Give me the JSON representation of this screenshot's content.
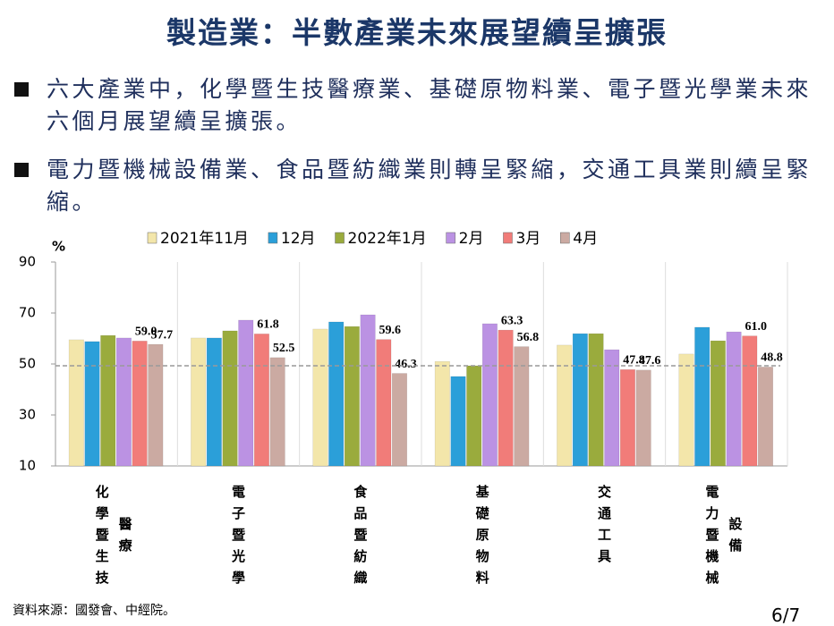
{
  "header": {
    "title": "製造業：半數產業未來展望續呈擴張"
  },
  "bullets": [
    "六大產業中，化學暨生技醫療業、基礎原物料業、電子暨光學業未來六個月展望續呈擴張。",
    "電力暨機械設備業、食品暨紡織業則轉呈緊縮，交通工具業則續呈緊縮。"
  ],
  "chart_data": {
    "type": "bar",
    "y_label": "%",
    "categories": [
      [
        "化學暨生技",
        "醫療"
      ],
      [
        "電子暨光學"
      ],
      [
        "食品暨紡織"
      ],
      [
        "基礎原物料"
      ],
      [
        "交通工具"
      ],
      [
        "電力暨機械",
        "設備"
      ]
    ],
    "series": [
      {
        "name": "2021年11月",
        "color": "#f3e6aa",
        "values": [
          59.5,
          60.2,
          63.7,
          51.0,
          57.4,
          53.9
        ]
      },
      {
        "name": "12月",
        "color": "#2b9fd9",
        "values": [
          58.8,
          60.2,
          66.5,
          45.1,
          61.9,
          64.4
        ]
      },
      {
        "name": "2022年1月",
        "color": "#9aab3d",
        "values": [
          61.2,
          63.0,
          64.7,
          49.3,
          61.9,
          59.1
        ]
      },
      {
        "name": "2月",
        "color": "#bb92e3",
        "values": [
          60.2,
          67.2,
          69.3,
          65.8,
          55.6,
          62.6
        ]
      },
      {
        "name": "3月",
        "color": "#f17c79",
        "values": [
          59.0,
          61.8,
          59.6,
          63.3,
          47.8,
          61.0
        ],
        "value_labels": [
          "59.0",
          "61.8",
          "59.6",
          "63.3",
          "47.8",
          "61.0"
        ]
      },
      {
        "name": "4月",
        "color": "#cbaaa2",
        "values": [
          57.7,
          52.5,
          46.3,
          56.8,
          47.6,
          48.8
        ],
        "value_labels": [
          "57.7",
          "52.5",
          "46.3",
          "56.8",
          "47.6",
          "48.8"
        ]
      }
    ],
    "ylim": [
      10,
      90
    ],
    "yticks": [
      10,
      30,
      50,
      70,
      90
    ],
    "reference_line": 50
  },
  "footer": {
    "source": "資料來源：國發會、中經院。",
    "page": "6/7"
  }
}
